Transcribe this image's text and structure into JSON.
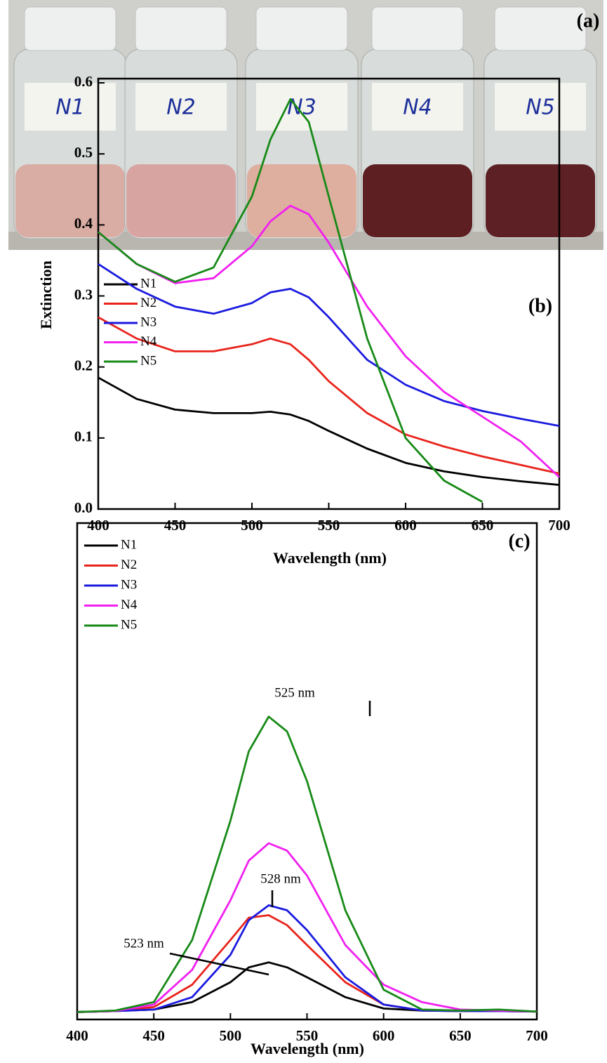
{
  "photo": {
    "label": "(a)",
    "vial_labels": [
      "N1",
      "N2",
      "N3",
      "N4",
      "N5"
    ]
  },
  "chart_data": [
    {
      "type": "line",
      "panel_label": "(b)",
      "x_label": "Wavelength (nm)",
      "y_label": "Extinction",
      "x": [
        400,
        425,
        450,
        475,
        500,
        512,
        525,
        537,
        550,
        575,
        600,
        625,
        650,
        675,
        700
      ],
      "series": [
        {
          "name": "N1",
          "color": "#000000",
          "values": [
            0.185,
            0.155,
            0.14,
            0.135,
            0.135,
            0.137,
            0.133,
            0.124,
            0.11,
            0.085,
            0.065,
            0.053,
            0.045,
            0.039,
            0.034
          ]
        },
        {
          "name": "N2",
          "color": "#e8231b",
          "values": [
            0.27,
            0.24,
            0.222,
            0.222,
            0.232,
            0.24,
            0.232,
            0.21,
            0.18,
            0.135,
            0.105,
            0.088,
            0.074,
            0.062,
            0.05
          ]
        },
        {
          "name": "N3",
          "color": "#1a1adf",
          "values": [
            0.345,
            0.31,
            0.285,
            0.275,
            0.29,
            0.305,
            0.31,
            0.298,
            0.27,
            0.21,
            0.175,
            0.152,
            0.138,
            0.127,
            0.117
          ]
        },
        {
          "name": "N4",
          "color": "#f020f0",
          "values": [
            0.39,
            0.345,
            0.318,
            0.325,
            0.37,
            0.405,
            0.427,
            0.415,
            0.375,
            0.285,
            0.215,
            0.165,
            0.13,
            0.095,
            0.045
          ]
        },
        {
          "name": "N5",
          "color": "#178a17",
          "values": [
            0.39,
            0.345,
            0.32,
            0.34,
            0.44,
            0.52,
            0.577,
            0.545,
            0.44,
            0.24,
            0.1,
            0.04,
            0.01,
            null,
            null
          ]
        }
      ],
      "xlim": [
        400,
        700
      ],
      "ylim": [
        0,
        0.6
      ],
      "xticks": [
        400,
        450,
        500,
        550,
        600,
        650,
        700
      ],
      "yticks": [
        {
          "value": 0,
          "label": "0.0"
        },
        0.1,
        0.2,
        0.3,
        0.4,
        0.5,
        0.6
      ]
    },
    {
      "type": "line",
      "panel_label": "(c)",
      "x_label": "Wavelength (nm)",
      "x": [
        400,
        425,
        450,
        475,
        500,
        512,
        525,
        537,
        550,
        575,
        600,
        625,
        650,
        675,
        700
      ],
      "series": [
        {
          "name": "N1",
          "color": "#000000",
          "values": [
            0.015,
            0.017,
            0.02,
            0.035,
            0.075,
            0.105,
            0.115,
            0.105,
            0.085,
            0.045,
            0.022,
            0.018,
            0.017,
            0.017,
            0.016
          ]
        },
        {
          "name": "N2",
          "color": "#e8231b",
          "values": [
            0.015,
            0.017,
            0.025,
            0.07,
            0.16,
            0.205,
            0.21,
            0.19,
            0.15,
            0.075,
            0.03,
            0.018,
            0.017,
            0.017,
            0.016
          ]
        },
        {
          "name": "N3",
          "color": "#1a1adf",
          "values": [
            0.015,
            0.017,
            0.02,
            0.045,
            0.13,
            0.2,
            0.23,
            0.22,
            0.18,
            0.085,
            0.03,
            0.018,
            0.017,
            0.017,
            0.016
          ]
        },
        {
          "name": "N4",
          "color": "#f020f0",
          "values": [
            0.015,
            0.017,
            0.03,
            0.1,
            0.24,
            0.32,
            0.355,
            0.34,
            0.29,
            0.15,
            0.07,
            0.035,
            0.02,
            0.018,
            0.016
          ]
        },
        {
          "name": "N5",
          "color": "#178a17",
          "values": [
            0.015,
            0.018,
            0.035,
            0.16,
            0.4,
            0.54,
            0.61,
            0.58,
            0.48,
            0.22,
            0.06,
            0.02,
            0.018,
            0.02,
            0.016
          ]
        }
      ],
      "annotations": [
        "525 nm",
        "528 nm",
        "523 nm"
      ],
      "xlim": [
        400,
        700
      ],
      "ylim": [
        0,
        1
      ],
      "xticks": [
        400,
        450,
        500,
        550,
        600,
        650,
        700
      ]
    }
  ]
}
